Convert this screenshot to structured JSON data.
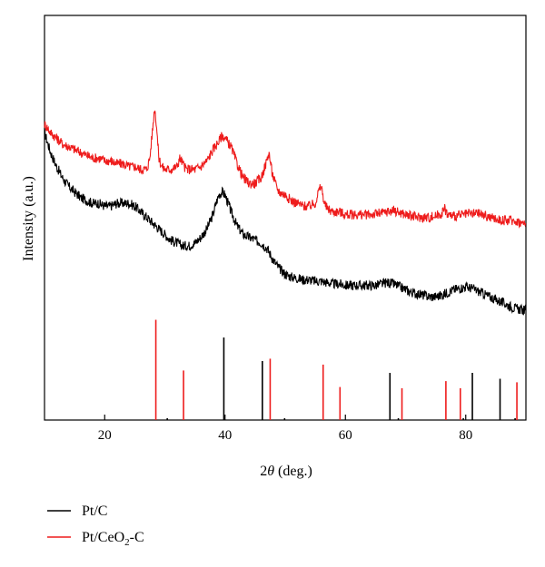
{
  "chart_data": {
    "type": "line",
    "xlabel_prefix": "2",
    "xlabel_symbol": "θ",
    "xlabel_suffix": " (deg.)",
    "ylabel": "Intensity (a.u.)",
    "xlim": [
      10,
      90
    ],
    "x_ticks": [
      20,
      40,
      60,
      80
    ],
    "grid": false,
    "legend_position": "bottom-left",
    "series": [
      {
        "name": "Pt/C",
        "color": "#000000",
        "x": [
          10,
          11,
          12,
          13,
          14,
          15,
          16,
          17,
          18,
          19,
          20,
          21,
          22,
          23,
          24,
          25,
          26,
          27,
          28,
          29,
          30,
          31,
          32,
          33,
          34,
          35,
          36,
          37,
          38,
          38.5,
          39,
          39.5,
          40,
          40.5,
          41,
          42,
          43,
          44,
          45,
          46,
          47,
          48,
          49,
          50,
          51,
          52,
          53,
          54,
          55,
          56,
          57,
          58,
          59,
          60,
          61,
          62,
          63,
          64,
          65,
          66,
          67,
          68,
          69,
          70,
          71,
          72,
          73,
          74,
          75,
          76,
          77,
          78,
          79,
          80,
          81,
          82,
          83,
          84,
          85,
          86,
          87,
          88,
          89,
          90
        ],
        "y": [
          0.91,
          0.84,
          0.79,
          0.75,
          0.72,
          0.7,
          0.68,
          0.67,
          0.66,
          0.66,
          0.65,
          0.65,
          0.66,
          0.66,
          0.66,
          0.65,
          0.63,
          0.61,
          0.59,
          0.57,
          0.55,
          0.53,
          0.52,
          0.51,
          0.51,
          0.52,
          0.54,
          0.57,
          0.62,
          0.66,
          0.69,
          0.7,
          0.69,
          0.66,
          0.63,
          0.58,
          0.55,
          0.54,
          0.53,
          0.52,
          0.5,
          0.46,
          0.43,
          0.41,
          0.4,
          0.395,
          0.39,
          0.39,
          0.385,
          0.385,
          0.38,
          0.375,
          0.375,
          0.37,
          0.37,
          0.37,
          0.37,
          0.37,
          0.37,
          0.375,
          0.38,
          0.375,
          0.365,
          0.355,
          0.345,
          0.34,
          0.335,
          0.33,
          0.33,
          0.335,
          0.345,
          0.355,
          0.36,
          0.365,
          0.36,
          0.35,
          0.34,
          0.33,
          0.32,
          0.31,
          0.3,
          0.29,
          0.285,
          0.28
        ]
      },
      {
        "name": "Pt/CeO2-C",
        "name_parts": [
          "Pt/CeO",
          "2",
          "-C"
        ],
        "color": "#ee1c1c",
        "x": [
          10,
          11,
          12,
          13,
          14,
          15,
          16,
          17,
          18,
          19,
          20,
          21,
          22,
          23,
          24,
          25,
          26,
          27,
          27.5,
          28,
          28.3,
          28.6,
          29,
          29.5,
          30,
          31,
          32,
          32.5,
          33,
          33.5,
          34,
          35,
          36,
          37,
          38,
          39,
          39.5,
          40,
          41,
          42,
          43,
          44,
          45,
          46,
          46.8,
          47.3,
          47.8,
          48.5,
          49,
          50,
          51,
          52,
          53,
          54,
          55,
          55.5,
          56,
          56.5,
          57,
          58,
          59,
          60,
          62,
          64,
          66,
          68,
          70,
          72,
          74,
          75,
          76,
          76.5,
          77,
          78,
          80,
          82,
          84,
          86,
          88,
          90
        ],
        "y": [
          0.94,
          0.91,
          0.89,
          0.87,
          0.86,
          0.85,
          0.84,
          0.83,
          0.82,
          0.82,
          0.81,
          0.81,
          0.8,
          0.8,
          0.79,
          0.79,
          0.78,
          0.78,
          0.82,
          0.93,
          1.0,
          0.94,
          0.82,
          0.79,
          0.78,
          0.78,
          0.79,
          0.82,
          0.8,
          0.78,
          0.78,
          0.78,
          0.79,
          0.81,
          0.85,
          0.88,
          0.9,
          0.89,
          0.86,
          0.8,
          0.75,
          0.73,
          0.73,
          0.75,
          0.8,
          0.84,
          0.77,
          0.72,
          0.7,
          0.69,
          0.67,
          0.66,
          0.65,
          0.65,
          0.66,
          0.7,
          0.72,
          0.66,
          0.64,
          0.63,
          0.63,
          0.62,
          0.62,
          0.62,
          0.625,
          0.635,
          0.62,
          0.61,
          0.61,
          0.615,
          0.625,
          0.64,
          0.62,
          0.615,
          0.62,
          0.625,
          0.61,
          0.6,
          0.6,
          0.585
        ]
      }
    ],
    "reference_lines": [
      {
        "name": "Pt/C",
        "color": "#000000",
        "positions": [
          30.4,
          39.8,
          46.2,
          49.9,
          67.4,
          68.8,
          79.6,
          81.1,
          85.7,
          88.2
        ],
        "heights": [
          0.01,
          0.7,
          0.5,
          0.01,
          0.4,
          0.01,
          0.01,
          0.4,
          0.35,
          0.01
        ]
      },
      {
        "name": "Pt/CeO2-C",
        "color": "#ee1c1c",
        "positions": [
          28.5,
          33.1,
          47.5,
          56.3,
          59.1,
          69.4,
          76.7,
          79.1,
          88.5
        ],
        "heights": [
          0.85,
          0.42,
          0.52,
          0.47,
          0.28,
          0.27,
          0.33,
          0.27,
          0.32
        ]
      }
    ]
  }
}
